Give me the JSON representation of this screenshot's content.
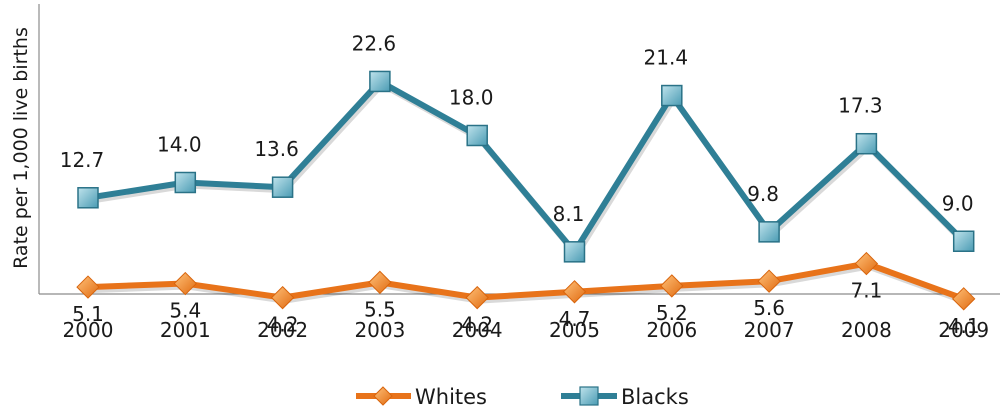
{
  "chart_data": {
    "type": "line",
    "categories": [
      "2000",
      "2001",
      "2002",
      "2003",
      "2004",
      "2005",
      "2006",
      "2007",
      "2008",
      "2009"
    ],
    "series": [
      {
        "name": "Whites",
        "values": [
          5.1,
          5.4,
          4.2,
          5.5,
          4.2,
          4.7,
          5.2,
          5.6,
          7.1,
          4.1
        ],
        "labels": [
          "5.1",
          "5.4",
          "4.2",
          "5.5",
          "4.2",
          "4.7",
          "5.2",
          "5.6",
          "7.1",
          "4.1"
        ],
        "color": "#e8731a",
        "marker": "diamond"
      },
      {
        "name": "Blacks",
        "values": [
          12.7,
          14.0,
          13.6,
          22.6,
          18.0,
          8.1,
          21.4,
          9.8,
          17.3,
          9.0
        ],
        "labels": [
          "12.7",
          "14.0",
          "13.6",
          "22.6",
          "18.0",
          "8.1",
          "21.4",
          "9.8",
          "17.3",
          "9.0"
        ],
        "color": "#2f7f96",
        "marker": "square"
      }
    ],
    "title": "",
    "xlabel": "",
    "ylabel": "Rate per 1,000 live births",
    "grid": false,
    "legend": "bottom"
  }
}
